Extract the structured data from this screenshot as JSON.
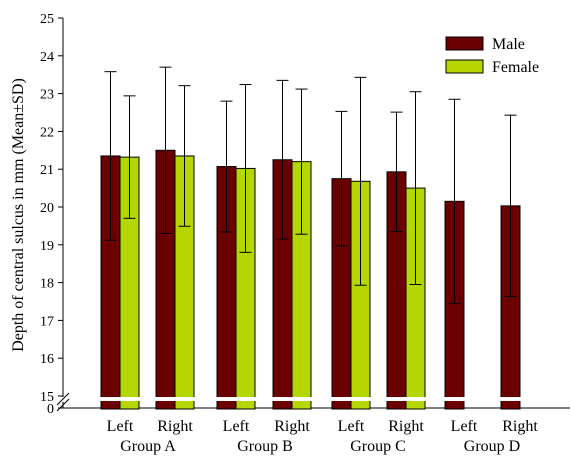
{
  "chart_data": {
    "type": "bar",
    "title": "",
    "ylabel": "Depth of central sulcus in mm (Mean±SD)",
    "xlabel": "",
    "ylim": [
      15,
      25
    ],
    "y_axis_break": true,
    "y_ticks": [
      "0",
      "15",
      "16",
      "17",
      "18",
      "19",
      "20",
      "21",
      "22",
      "23",
      "24",
      "25"
    ],
    "categories": [
      "Left",
      "Right",
      "Left",
      "Right",
      "Left",
      "Right",
      "Left",
      "Right"
    ],
    "groups": [
      {
        "label": "Group A",
        "categories": [
          "Left",
          "Right"
        ]
      },
      {
        "label": "Group B",
        "categories": [
          "Left",
          "Right"
        ]
      },
      {
        "label": "Group C",
        "categories": [
          "Left",
          "Right"
        ]
      },
      {
        "label": "Group D",
        "categories": [
          "Left",
          "Right"
        ]
      }
    ],
    "series": [
      {
        "name": "Male",
        "color": "#6b0000",
        "values": [
          21.35,
          21.5,
          21.07,
          21.25,
          20.75,
          20.93,
          20.15,
          20.03
        ],
        "sd": [
          2.23,
          2.2,
          1.73,
          2.1,
          1.78,
          1.58,
          2.7,
          2.4
        ]
      },
      {
        "name": "Female",
        "color": "#b5d600",
        "values": [
          21.32,
          21.35,
          21.02,
          21.2,
          20.68,
          20.5,
          null,
          null
        ],
        "sd": [
          1.62,
          1.86,
          2.22,
          1.92,
          2.75,
          2.55,
          null,
          null
        ]
      }
    ],
    "grid": false,
    "legend_position": "top-right"
  }
}
